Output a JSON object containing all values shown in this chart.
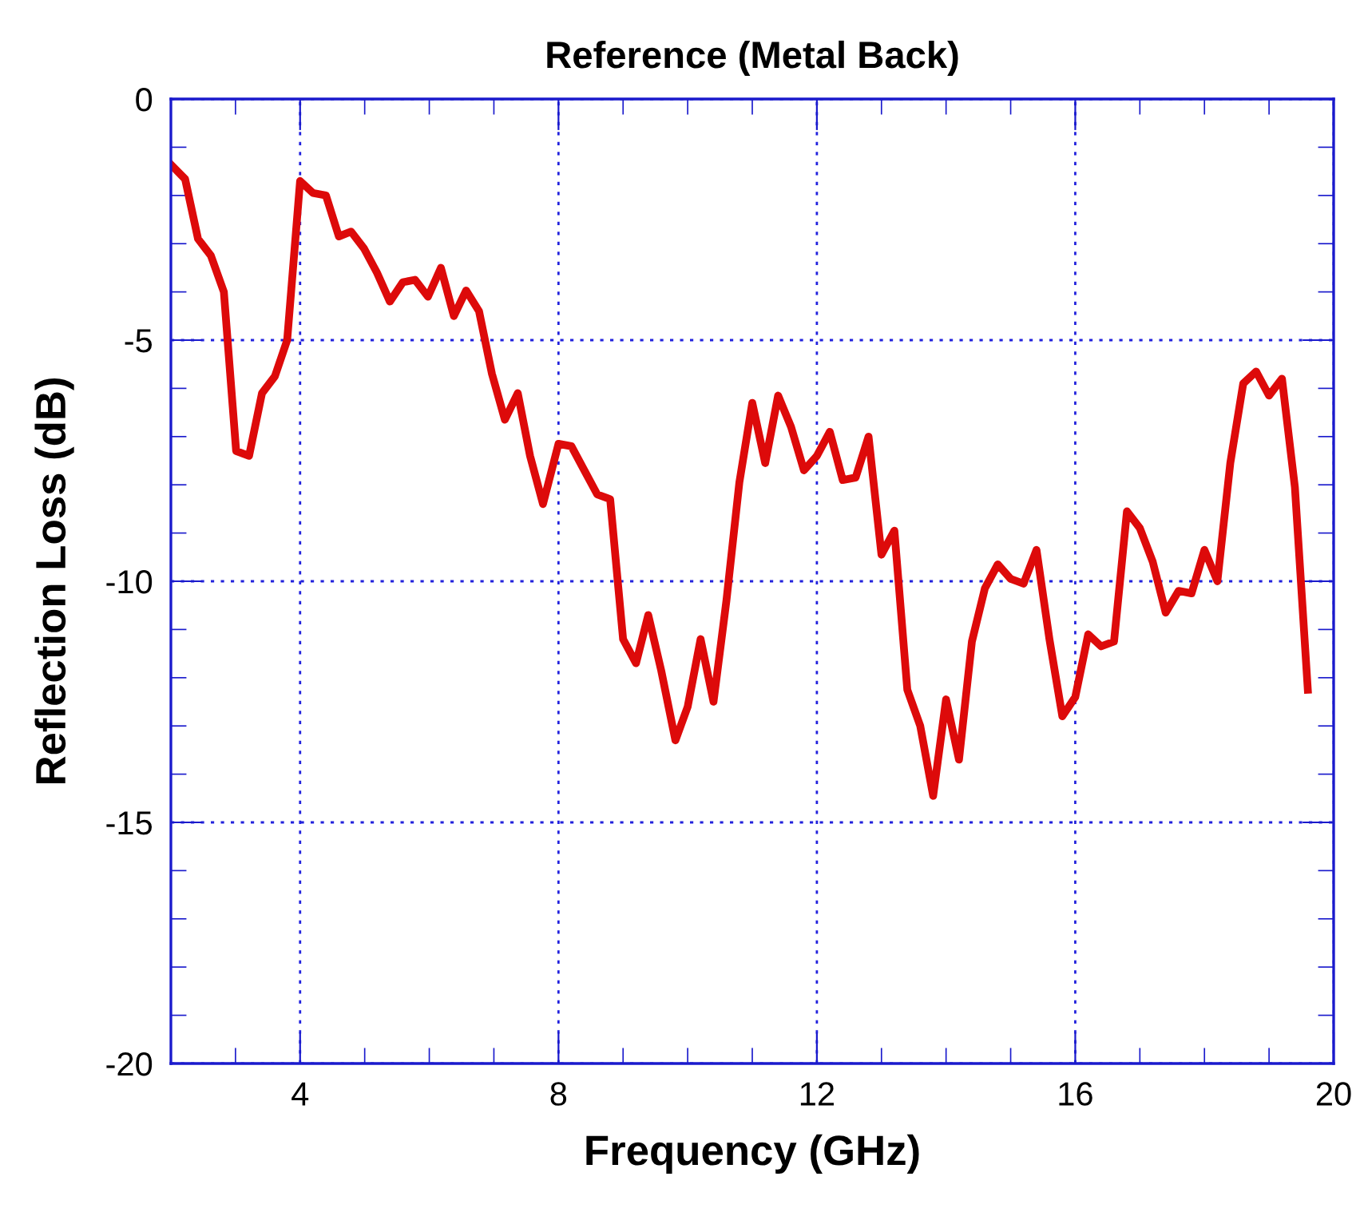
{
  "chart_data": {
    "type": "line",
    "title": "Reference (Metal Back)",
    "xlabel": "Frequency (GHz)",
    "ylabel": "Reflection Loss (dB)",
    "xlim": [
      2,
      20
    ],
    "xticks": [
      4,
      8,
      12,
      16,
      20
    ],
    "ylim": [
      -20,
      0
    ],
    "yticks": [
      -20,
      -15,
      -10,
      -5,
      0
    ],
    "grid": true,
    "line_style": "solid",
    "marker": "none",
    "series": [
      {
        "color": "#dd0a0a",
        "x": [
          2.0,
          2.22,
          2.42,
          2.62,
          2.82,
          3.01,
          3.21,
          3.41,
          3.61,
          3.8,
          4.0,
          4.2,
          4.4,
          4.6,
          4.79,
          4.99,
          5.19,
          5.39,
          5.59,
          5.78,
          5.98,
          6.18,
          6.38,
          6.57,
          6.77,
          6.97,
          7.17,
          7.37,
          7.56,
          7.76,
          8.0,
          8.2,
          8.4,
          8.6,
          8.8,
          9.0,
          9.2,
          9.39,
          9.59,
          9.81,
          10.0,
          10.2,
          10.4,
          10.6,
          10.8,
          11.0,
          11.2,
          11.4,
          11.6,
          11.8,
          12.0,
          12.2,
          12.4,
          12.6,
          12.8,
          13.0,
          13.2,
          13.4,
          13.6,
          13.8,
          14.0,
          14.2,
          14.4,
          14.6,
          14.8,
          15.0,
          15.2,
          15.4,
          15.6,
          15.8,
          16.0,
          16.2,
          16.4,
          16.6,
          16.8,
          17.0,
          17.2,
          17.4,
          17.6,
          17.8,
          18.0,
          18.2,
          18.4,
          18.6,
          18.8,
          19.0,
          19.2,
          19.4,
          19.6
        ],
        "values": [
          -1.36,
          -1.66,
          -2.9,
          -3.25,
          -4.0,
          -7.3,
          -7.4,
          -6.1,
          -5.75,
          -5.0,
          -1.7,
          -1.95,
          -2.0,
          -2.85,
          -2.75,
          -3.1,
          -3.6,
          -4.2,
          -3.8,
          -3.75,
          -4.1,
          -3.5,
          -4.5,
          -3.97,
          -4.4,
          -5.7,
          -6.65,
          -6.1,
          -7.4,
          -8.4,
          -7.15,
          -7.2,
          -7.7,
          -8.2,
          -8.3,
          -11.2,
          -11.7,
          -10.7,
          -11.85,
          -13.3,
          -12.6,
          -11.2,
          -12.5,
          -10.4,
          -7.95,
          -6.3,
          -7.55,
          -6.15,
          -6.8,
          -7.7,
          -7.4,
          -6.9,
          -7.9,
          -7.85,
          -7.0,
          -9.45,
          -8.95,
          -12.25,
          -13.0,
          -14.45,
          -12.45,
          -13.7,
          -11.25,
          -10.15,
          -9.65,
          -9.95,
          -10.05,
          -9.35,
          -11.2,
          -12.8,
          -12.4,
          -11.1,
          -11.35,
          -11.25,
          -8.55,
          -8.9,
          -9.6,
          -10.65,
          -10.2,
          -10.25,
          -9.35,
          -10.0,
          -7.55,
          -5.9,
          -5.65,
          -6.15,
          -5.8,
          -8.05,
          -12.25
        ]
      }
    ]
  }
}
